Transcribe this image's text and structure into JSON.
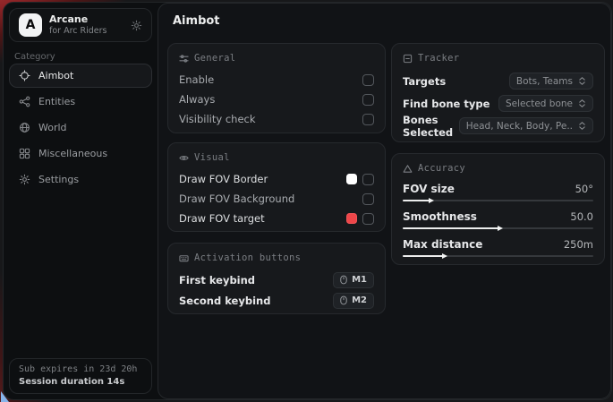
{
  "app": {
    "logo_letter": "A",
    "name": "Arcane",
    "subtitle": "for Arc Riders"
  },
  "sidebar": {
    "category_label": "Category",
    "items": [
      {
        "label": "Aimbot",
        "selected": true
      },
      {
        "label": "Entities",
        "selected": false
      },
      {
        "label": "World",
        "selected": false
      },
      {
        "label": "Miscellaneous",
        "selected": false
      },
      {
        "label": "Settings",
        "selected": false
      }
    ],
    "subscription": {
      "expires": "Sub expires in 23d 20h",
      "session": "Session duration 14s"
    }
  },
  "main": {
    "title": "Aimbot",
    "cards": {
      "general": {
        "title": "General",
        "rows": [
          {
            "label": "Enable",
            "checked": false
          },
          {
            "label": "Always",
            "checked": false
          },
          {
            "label": "Visibility check",
            "checked": false
          }
        ]
      },
      "visual": {
        "title": "Visual",
        "rows": [
          {
            "label": "Draw FOV Border",
            "swatch": "#ffffff",
            "checked": false
          },
          {
            "label": "Draw FOV Background",
            "checked": false
          },
          {
            "label": "Draw FOV target",
            "swatch": "#ef4649",
            "checked": false
          }
        ]
      },
      "activation": {
        "title": "Activation buttons",
        "rows": [
          {
            "label": "First keybind",
            "key": "M1"
          },
          {
            "label": "Second keybind",
            "key": "M2"
          }
        ]
      },
      "tracker": {
        "title": "Tracker",
        "rows": [
          {
            "label": "Targets",
            "value": "Bots, Teams"
          },
          {
            "label": "Find bone type",
            "value": "Selected bone"
          },
          {
            "label": "Bones Selected",
            "value": "Head, Neck, Body, Pe.."
          }
        ]
      },
      "accuracy": {
        "title": "Accuracy",
        "rows": [
          {
            "label": "FOV size",
            "value": "50°",
            "percent": 14
          },
          {
            "label": "Smoothness",
            "value": "50.0",
            "percent": 50
          },
          {
            "label": "Max distance",
            "value": "250m",
            "percent": 21
          }
        ]
      }
    }
  },
  "colors": {
    "swatch_white": "#ffffff",
    "swatch_red": "#ef4649",
    "background_red": "#8c2326"
  }
}
